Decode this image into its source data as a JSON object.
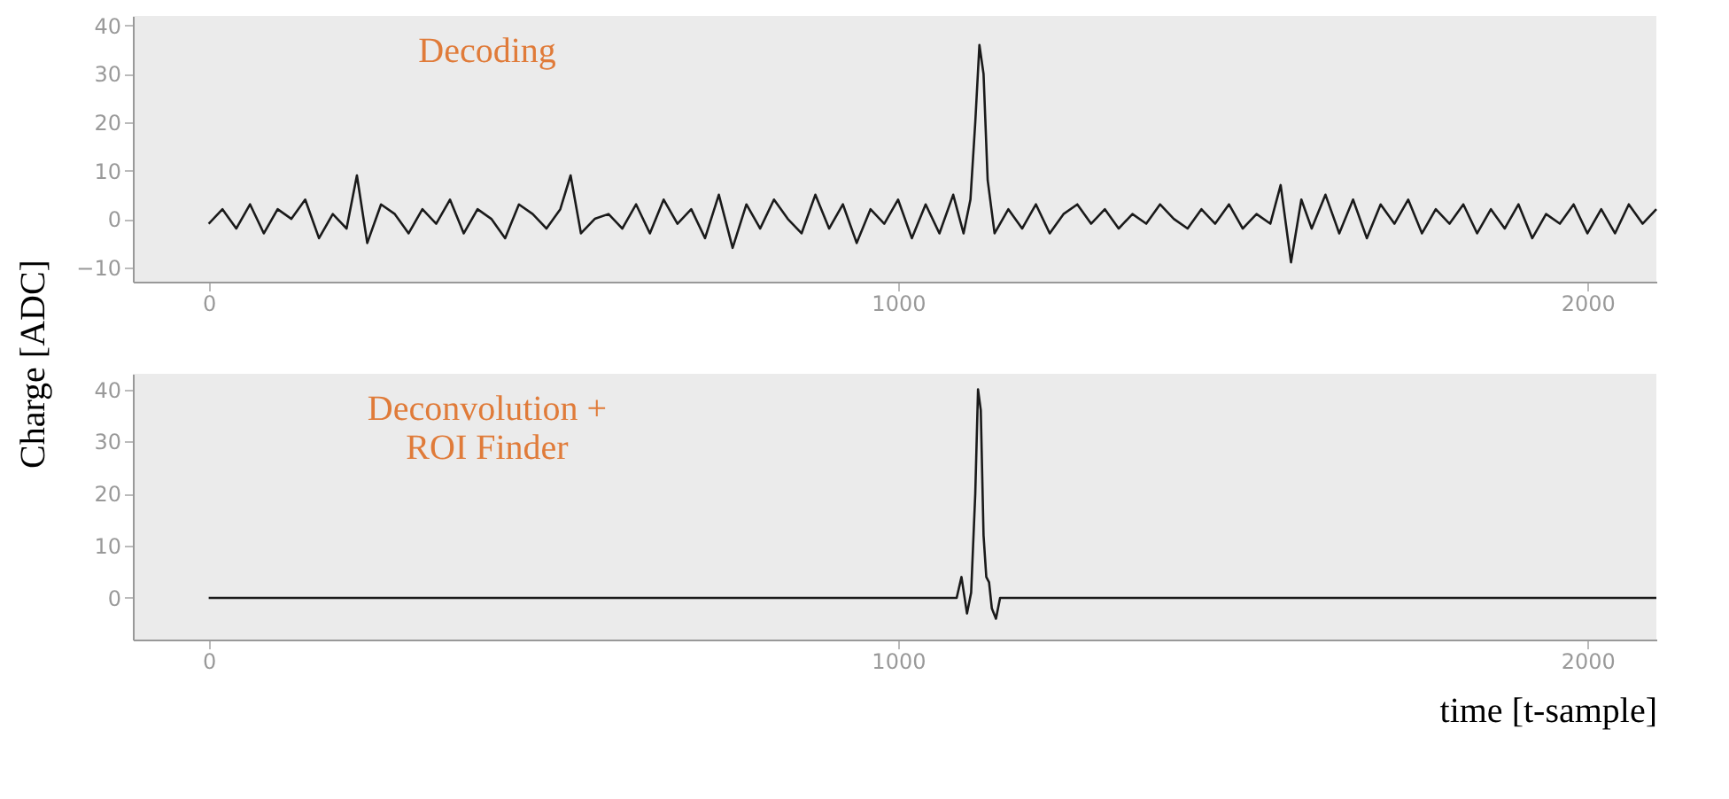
{
  "chart_data": [
    {
      "type": "line",
      "ylabel": "Charge [ADC]",
      "annotations": [
        "Decoding"
      ],
      "xlim": [
        -110,
        2100
      ],
      "ylim": [
        -13,
        42
      ],
      "xticks": [
        0,
        1000,
        2000
      ],
      "yticks": [
        -10,
        0,
        10,
        20,
        30,
        40
      ],
      "grid": false,
      "marker": "none",
      "line_style": "solid",
      "series": [
        {
          "color": "#1a1a1a",
          "x": [
            0,
            20,
            40,
            60,
            80,
            100,
            120,
            140,
            160,
            180,
            200,
            215,
            230,
            250,
            270,
            290,
            310,
            330,
            350,
            370,
            390,
            410,
            430,
            450,
            470,
            490,
            510,
            525,
            540,
            560,
            580,
            600,
            620,
            640,
            660,
            680,
            700,
            720,
            740,
            760,
            780,
            800,
            820,
            840,
            860,
            880,
            900,
            920,
            940,
            960,
            980,
            1000,
            1020,
            1040,
            1060,
            1080,
            1095,
            1105,
            1112,
            1118,
            1124,
            1130,
            1140,
            1160,
            1180,
            1200,
            1220,
            1240,
            1260,
            1280,
            1300,
            1320,
            1340,
            1360,
            1380,
            1400,
            1420,
            1440,
            1460,
            1480,
            1500,
            1520,
            1540,
            1555,
            1570,
            1585,
            1600,
            1620,
            1640,
            1660,
            1680,
            1700,
            1720,
            1740,
            1760,
            1780,
            1800,
            1820,
            1840,
            1860,
            1880,
            1900,
            1920,
            1940,
            1960,
            1980,
            2000,
            2020,
            2040,
            2060,
            2080,
            2100
          ],
          "values": [
            -1,
            2,
            -2,
            3,
            -3,
            2,
            0,
            4,
            -4,
            1,
            -2,
            9,
            -5,
            3,
            1,
            -3,
            2,
            -1,
            4,
            -3,
            2,
            0,
            -4,
            3,
            1,
            -2,
            2,
            9,
            -3,
            0,
            1,
            -2,
            3,
            -3,
            4,
            -1,
            2,
            -4,
            5,
            -6,
            3,
            -2,
            4,
            0,
            -3,
            5,
            -2,
            3,
            -5,
            2,
            -1,
            4,
            -4,
            3,
            -3,
            5,
            -3,
            4,
            20,
            36,
            30,
            8,
            -3,
            2,
            -2,
            3,
            -3,
            1,
            3,
            -1,
            2,
            -2,
            1,
            -1,
            3,
            0,
            -2,
            2,
            -1,
            3,
            -2,
            1,
            -1,
            7,
            -9,
            4,
            -2,
            5,
            -3,
            4,
            -4,
            3,
            -1,
            4,
            -3,
            2,
            -1,
            3,
            -3,
            2,
            -2,
            3,
            -4,
            1,
            -1,
            3,
            -3,
            2,
            -3,
            3,
            -1,
            2
          ]
        }
      ]
    },
    {
      "type": "line",
      "xlabel": "time [t-sample]",
      "annotations": [
        "Deconvolution +\nROI Finder"
      ],
      "xlim": [
        -110,
        2100
      ],
      "ylim": [
        -8,
        43
      ],
      "xticks": [
        0,
        1000,
        2000
      ],
      "yticks": [
        0,
        10,
        20,
        30,
        40
      ],
      "grid": false,
      "marker": "none",
      "line_style": "solid",
      "series": [
        {
          "color": "#1a1a1a",
          "x": [
            0,
            1085,
            1092,
            1100,
            1106,
            1112,
            1116,
            1120,
            1124,
            1128,
            1132,
            1136,
            1142,
            1148,
            1155,
            2100
          ],
          "values": [
            0,
            0,
            4,
            -3,
            1,
            20,
            40,
            36,
            12,
            4,
            3,
            -2,
            -4,
            0,
            0,
            0
          ]
        }
      ]
    }
  ]
}
